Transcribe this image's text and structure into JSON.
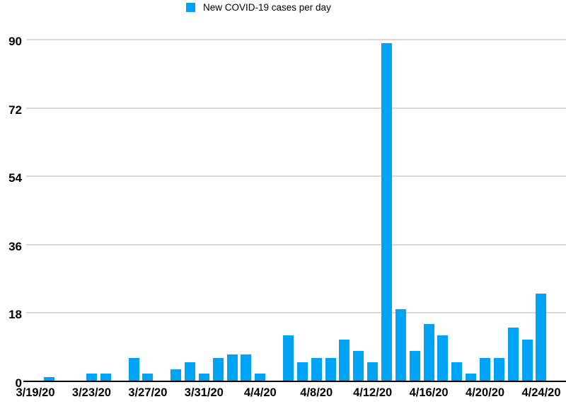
{
  "chart_data": {
    "type": "bar",
    "title": "",
    "legend": "New COVID-19 cases per day",
    "legend_position": "top-center",
    "x": [
      "3/19/20",
      "3/20/20",
      "3/21/20",
      "3/22/20",
      "3/23/20",
      "3/24/20",
      "3/25/20",
      "3/26/20",
      "3/27/20",
      "3/28/20",
      "3/29/20",
      "3/30/20",
      "3/31/20",
      "4/1/20",
      "4/2/20",
      "4/3/20",
      "4/4/20",
      "4/5/20",
      "4/6/20",
      "4/7/20",
      "4/8/20",
      "4/9/20",
      "4/10/20",
      "4/11/20",
      "4/12/20",
      "4/13/20",
      "4/14/20",
      "4/15/20",
      "4/16/20",
      "4/17/20",
      "4/18/20",
      "4/19/20",
      "4/20/20",
      "4/21/20",
      "4/22/20",
      "4/23/20",
      "4/24/20"
    ],
    "values": [
      0,
      1,
      0,
      0,
      2,
      2,
      0,
      6,
      2,
      0,
      3,
      5,
      2,
      6,
      7,
      7,
      2,
      0,
      12,
      5,
      6,
      6,
      11,
      8,
      5,
      89,
      19,
      8,
      15,
      12,
      5,
      2,
      6,
      6,
      14,
      11,
      23
    ],
    "x_tick_every": 4,
    "x_tick_labels": [
      "3/19/20",
      "3/23/20",
      "3/27/20",
      "3/31/20",
      "4/4/20",
      "4/8/20",
      "4/12/20",
      "4/16/20",
      "4/20/20",
      "4/24/20"
    ],
    "yticks": [
      0,
      18,
      36,
      54,
      72,
      90
    ],
    "ylim": [
      0,
      90
    ],
    "xlabel": "",
    "ylabel": "",
    "grid": true,
    "colors": {
      "bar": "#00a2f4",
      "gridline": "#d9d9d9",
      "axis": "#000000",
      "text": "#000000"
    }
  }
}
